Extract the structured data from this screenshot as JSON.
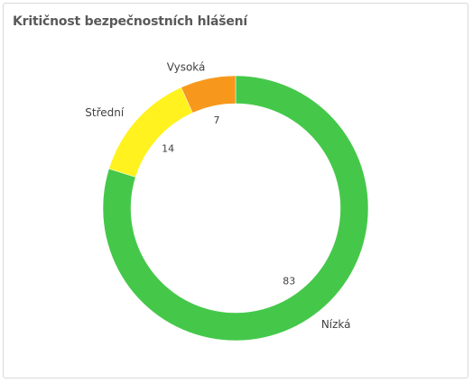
{
  "panel": {
    "title": "Kritičnost bezpečnostních hlášení"
  },
  "chart_data": {
    "type": "pie",
    "variant": "donut",
    "title": "Kritičnost bezpečnostních hlášení",
    "categories": [
      "Nízká",
      "Střední",
      "Vysoká"
    ],
    "values": [
      83,
      14,
      7
    ],
    "colors": [
      "#45c84a",
      "#fff21e",
      "#f7981c"
    ],
    "start": "12 o'clock",
    "direction": "clockwise",
    "legend": "none",
    "labels": "outside category labels, inside value labels"
  }
}
